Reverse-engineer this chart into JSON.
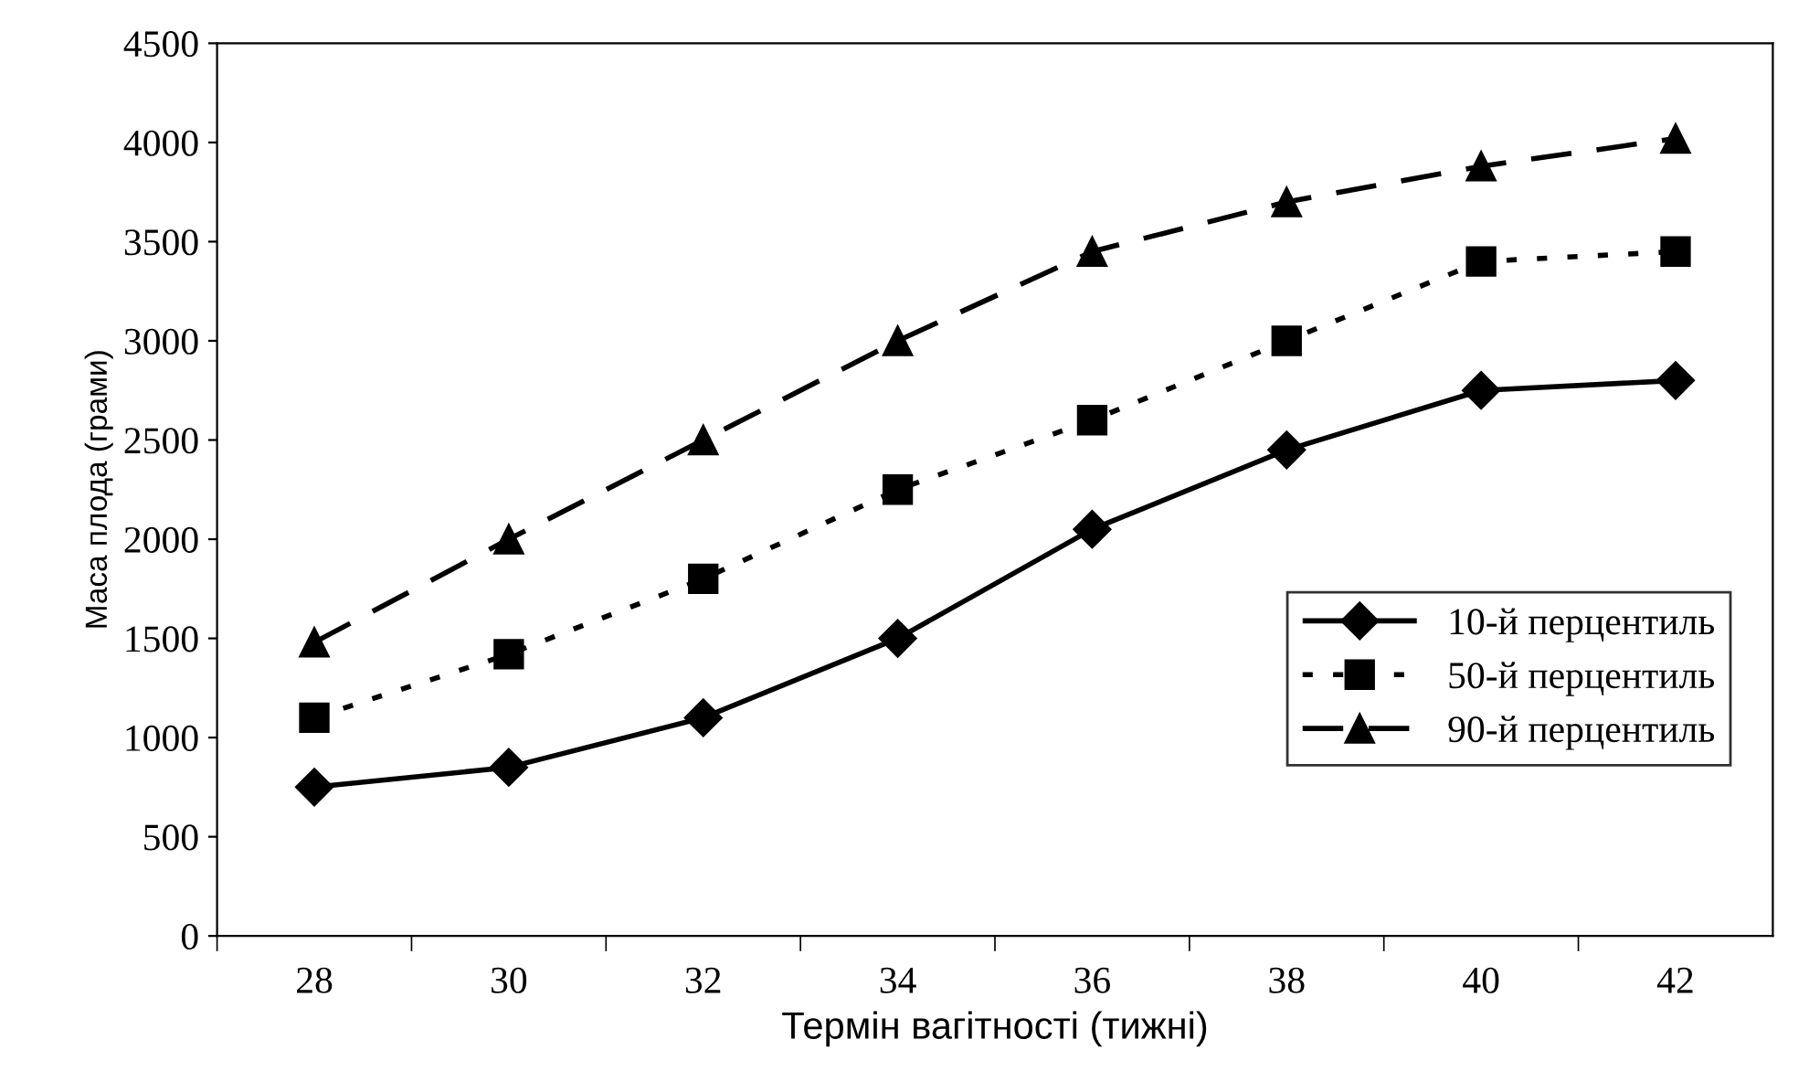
{
  "chart_data": {
    "type": "line",
    "xlabel": "Термін вагітності (тижні)",
    "ylabel": "Маса плода (грами)",
    "categories": [
      "28",
      "30",
      "32",
      "34",
      "36",
      "38",
      "40",
      "42"
    ],
    "series": [
      {
        "name": "10-й перцентиль",
        "color": "#000000",
        "marker": "diamond",
        "line_style": "solid",
        "values": [
          750,
          850,
          1100,
          1500,
          2050,
          2450,
          2750,
          2800
        ]
      },
      {
        "name": "50-й перцентиль",
        "color": "#000000",
        "marker": "square",
        "line_style": "dotted",
        "values": [
          1100,
          1420,
          1800,
          2250,
          2600,
          3000,
          3400,
          3450
        ]
      },
      {
        "name": "90-й перцентиль",
        "color": "#000000",
        "marker": "triangle",
        "line_style": "dashed",
        "values": [
          1480,
          2000,
          2500,
          3000,
          3450,
          3700,
          3880,
          4020
        ]
      }
    ],
    "ylim": [
      0,
      4500
    ],
    "yticks": [
      0,
      500,
      1000,
      1500,
      2000,
      2500,
      3000,
      3500,
      4000,
      4500
    ],
    "grid": false,
    "legend": "bottom right"
  }
}
